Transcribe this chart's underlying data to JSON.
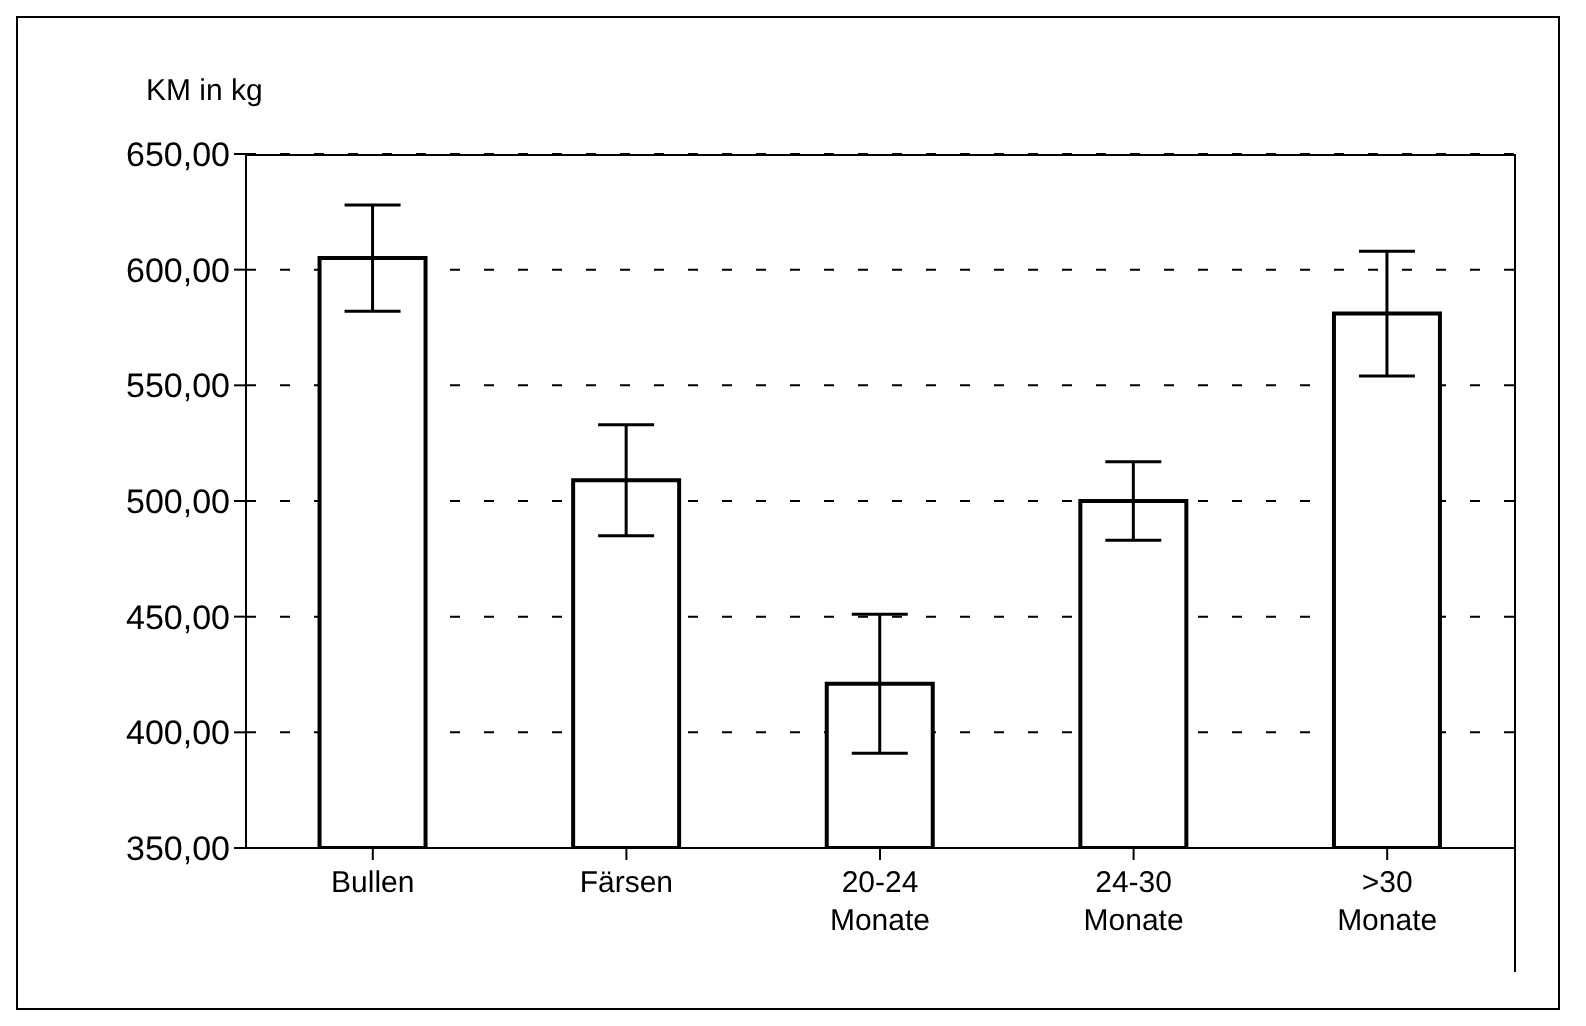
{
  "chart_data": {
    "type": "bar",
    "ylabel": "KM in kg",
    "categories": [
      "Bullen",
      "Färsen",
      "20-24\nMonate",
      "24-30\nMonate",
      ">30\nMonate"
    ],
    "values": [
      605,
      509,
      421,
      500,
      581
    ],
    "errors": [
      23,
      24,
      30,
      17,
      27
    ],
    "color": "#ffffff",
    "ylim": [
      350,
      650
    ],
    "yticks": [
      {
        "value": 350,
        "label": "350,00"
      },
      {
        "value": 400,
        "label": "400,00"
      },
      {
        "value": 450,
        "label": "450,00"
      },
      {
        "value": 500,
        "label": "500,00"
      },
      {
        "value": 550,
        "label": "550,00"
      },
      {
        "value": 600,
        "label": "600,00"
      },
      {
        "value": 650,
        "label": "650,00"
      }
    ],
    "grid": "y"
  }
}
